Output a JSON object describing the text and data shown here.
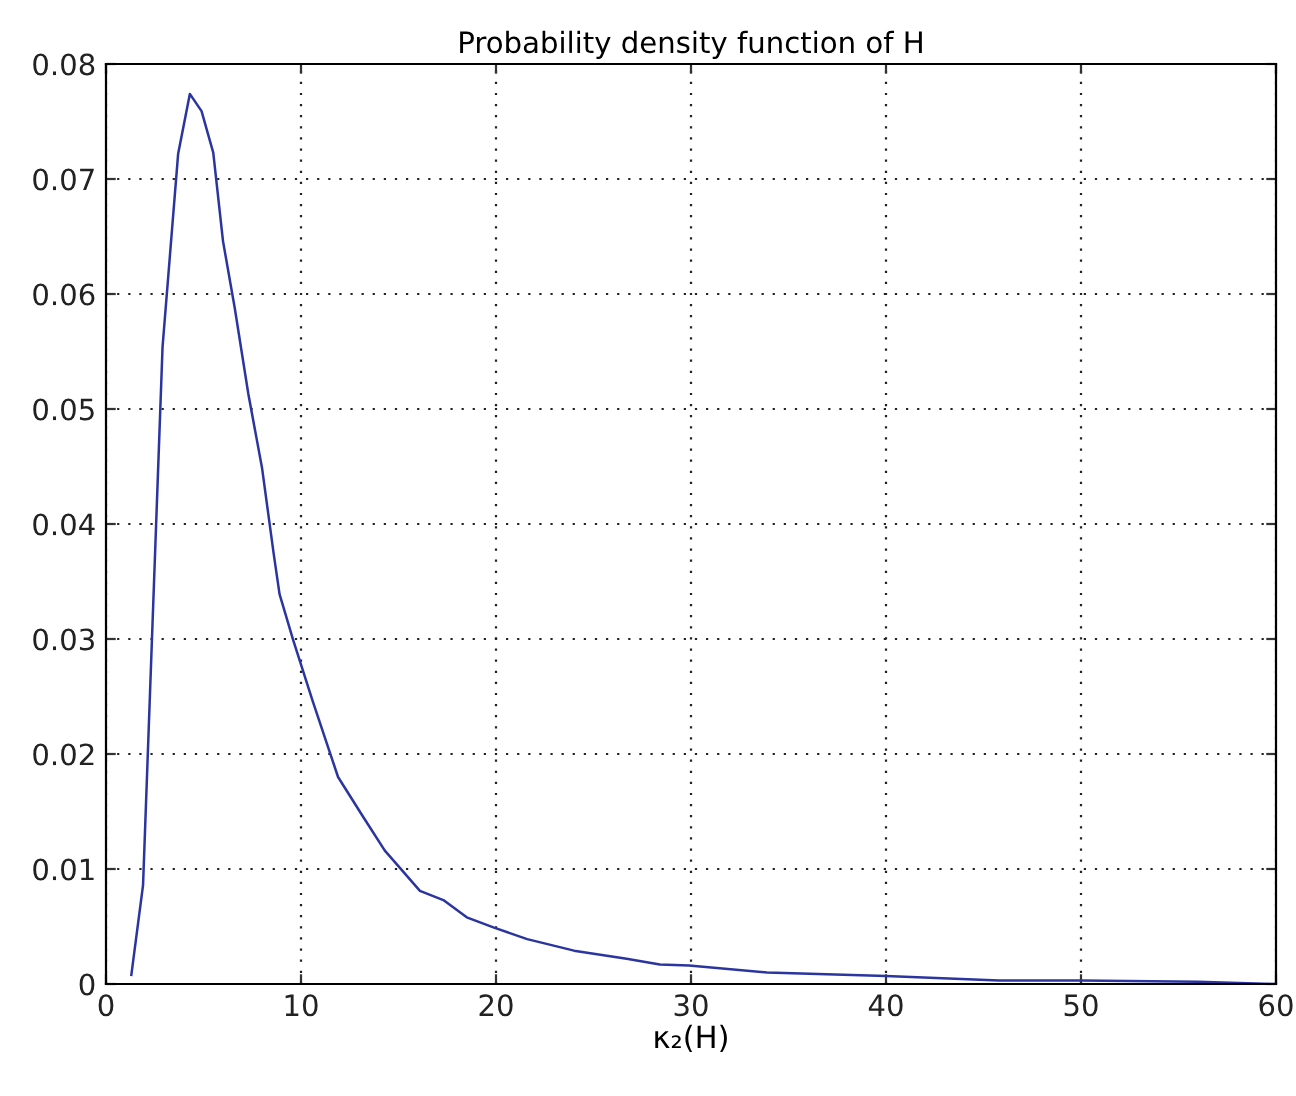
{
  "chart_data": {
    "type": "line",
    "title": "Probability density function of H",
    "xlabel": "κ₂(H)",
    "xlim": [
      0,
      60
    ],
    "xticks": [
      0,
      10,
      20,
      30,
      40,
      50,
      60
    ],
    "ylim": [
      0,
      0.08
    ],
    "yticks": [
      0,
      0.01,
      0.02,
      0.03,
      0.04,
      0.05,
      0.06,
      0.07,
      0.08
    ],
    "grid": true,
    "line_style": "solid",
    "marker": "none",
    "series": [
      {
        "color": "#2b35a0",
        "x": [
          1.3,
          1.9,
          2.9,
          3.7,
          4.3,
          4.9,
          5.5,
          6.0,
          6.6,
          7.3,
          8.0,
          8.6,
          8.9,
          9.6,
          10.6,
          11.9,
          13.2,
          14.3,
          16.1,
          17.3,
          18.5,
          19.9,
          21.6,
          24.0,
          26.7,
          28.4,
          29.9,
          33.9,
          40.0,
          45.8,
          50.0,
          56.0,
          59.9
        ],
        "values": [
          0.0008,
          0.0086,
          0.0554,
          0.0722,
          0.0774,
          0.0759,
          0.0723,
          0.0646,
          0.0588,
          0.0513,
          0.0449,
          0.0374,
          0.0339,
          0.0299,
          0.0246,
          0.018,
          0.0145,
          0.0116,
          0.0081,
          0.0073,
          0.0058,
          0.0049,
          0.0039,
          0.0029,
          0.0022,
          0.0017,
          0.0016,
          0.001,
          0.0007,
          0.0003,
          0.0003,
          0.0002,
          0.0
        ]
      }
    ]
  }
}
